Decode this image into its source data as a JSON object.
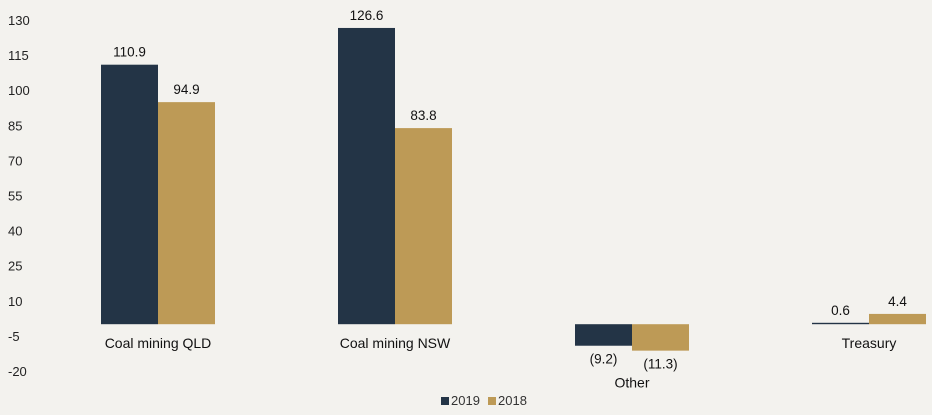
{
  "chart_data": {
    "type": "bar",
    "categories": [
      "Coal mining QLD",
      "Coal mining NSW",
      "Other",
      "Treasury"
    ],
    "series": [
      {
        "name": "2019",
        "values": [
          110.9,
          126.6,
          -9.2,
          0.6
        ],
        "labels": [
          "110.9",
          "126.6",
          "(9.2)",
          "0.6"
        ],
        "color": "#233446"
      },
      {
        "name": "2018",
        "values": [
          94.9,
          83.8,
          -11.3,
          4.4
        ],
        "labels": [
          "94.9",
          "83.8",
          "(11.3)",
          "4.4"
        ],
        "color": "#bd9a56"
      }
    ],
    "yticks": [
      "130",
      "115",
      "100",
      "85",
      "70",
      "55",
      "40",
      "25",
      "10",
      "-5",
      "-20"
    ],
    "ylim": [
      -20,
      130
    ],
    "title": "",
    "xlabel": "",
    "ylabel": "",
    "legend_position": "bottom-center",
    "grid": false
  }
}
